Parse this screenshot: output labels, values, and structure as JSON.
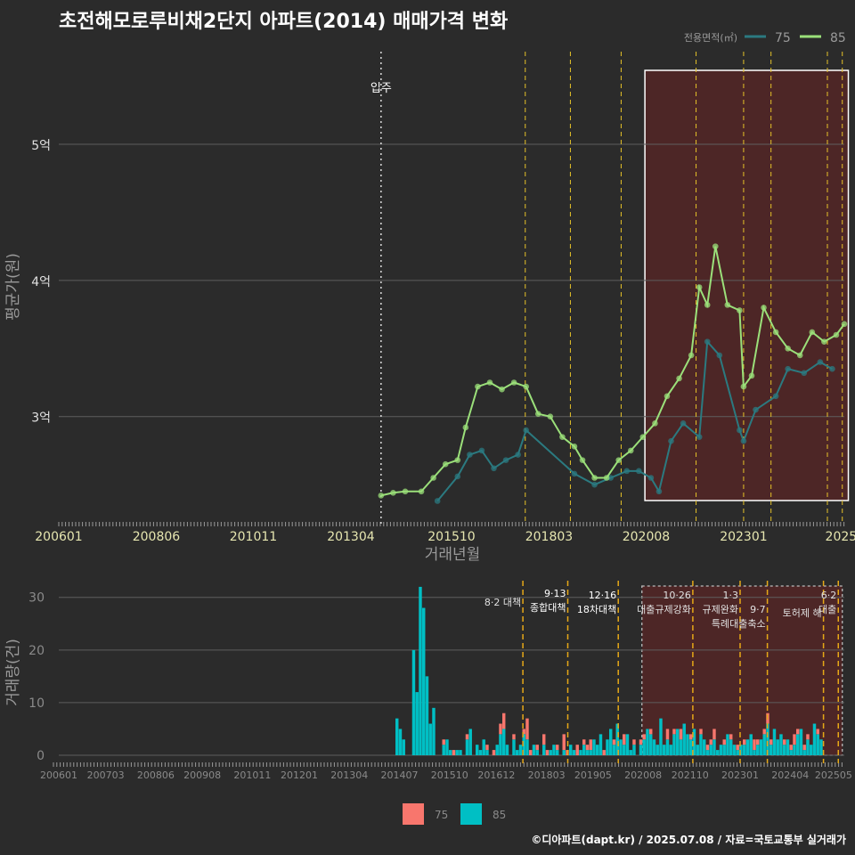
{
  "title": "초전해모로루비채2단지 아파트(2014) 매매가격 변화",
  "credit": "©디아파트(dapt.kr) / 2025.07.08 / 자료=국토교통부 실거래가",
  "colors": {
    "bg": "#2b2b2b",
    "s75_line": "#2b7a80",
    "s85_line": "#9be07a",
    "s75_bar": "#f8766d",
    "s85_bar": "#00bfc4",
    "policy": "#e6c229",
    "highlight": "#5a2626",
    "grid": "#5e5e5e"
  },
  "chart_data": [
    {
      "type": "line",
      "ylabel": "평균가(원)",
      "xlabel": "거래년월",
      "legend_title": "전용면적(㎡)",
      "legend_position": "top-right",
      "x_ticks": [
        "200601",
        "200806",
        "201011",
        "201304",
        "201510",
        "201803",
        "202008",
        "202301",
        "2025"
      ],
      "y_ticks": [
        "3억",
        "4억",
        "5억"
      ],
      "ylim": [
        2.2,
        5.7
      ],
      "annotation": "입주",
      "annotation_x": 2014.0,
      "policy_x": [
        2017.58,
        2018.7,
        2019.96,
        2021.82,
        2023.0,
        2023.68,
        2025.08,
        2025.45
      ],
      "highlight_range": [
        2020.55,
        2025.6
      ],
      "series": [
        {
          "name": "75",
          "points": [
            [
              2015.4,
              2.38
            ],
            [
              2015.9,
              2.56
            ],
            [
              2016.2,
              2.72
            ],
            [
              2016.5,
              2.75
            ],
            [
              2016.8,
              2.62
            ],
            [
              2017.1,
              2.68
            ],
            [
              2017.4,
              2.72
            ],
            [
              2017.6,
              2.9
            ],
            [
              2018.8,
              2.58
            ],
            [
              2019.3,
              2.5
            ],
            [
              2019.7,
              2.55
            ],
            [
              2020.1,
              2.6
            ],
            [
              2020.4,
              2.6
            ],
            [
              2020.7,
              2.55
            ],
            [
              2020.9,
              2.45
            ],
            [
              2021.2,
              2.82
            ],
            [
              2021.5,
              2.95
            ],
            [
              2021.9,
              2.85
            ],
            [
              2022.1,
              3.55
            ],
            [
              2022.4,
              3.45
            ],
            [
              2022.9,
              2.9
            ],
            [
              2023.0,
              2.82
            ],
            [
              2023.3,
              3.05
            ],
            [
              2023.8,
              3.15
            ],
            [
              2024.1,
              3.35
            ],
            [
              2024.5,
              3.32
            ],
            [
              2024.9,
              3.4
            ],
            [
              2025.2,
              3.35
            ]
          ]
        },
        {
          "name": "85",
          "points": [
            [
              2014.0,
              2.42
            ],
            [
              2014.3,
              2.44
            ],
            [
              2014.6,
              2.45
            ],
            [
              2015.0,
              2.45
            ],
            [
              2015.3,
              2.55
            ],
            [
              2015.6,
              2.65
            ],
            [
              2015.9,
              2.68
            ],
            [
              2016.1,
              2.92
            ],
            [
              2016.4,
              3.22
            ],
            [
              2016.7,
              3.25
            ],
            [
              2017.0,
              3.2
            ],
            [
              2017.3,
              3.25
            ],
            [
              2017.6,
              3.22
            ],
            [
              2017.9,
              3.02
            ],
            [
              2018.2,
              3.0
            ],
            [
              2018.5,
              2.85
            ],
            [
              2018.8,
              2.78
            ],
            [
              2019.0,
              2.68
            ],
            [
              2019.3,
              2.55
            ],
            [
              2019.6,
              2.55
            ],
            [
              2019.9,
              2.68
            ],
            [
              2020.2,
              2.75
            ],
            [
              2020.5,
              2.85
            ],
            [
              2020.8,
              2.95
            ],
            [
              2021.1,
              3.15
            ],
            [
              2021.4,
              3.28
            ],
            [
              2021.7,
              3.45
            ],
            [
              2021.9,
              3.95
            ],
            [
              2022.1,
              3.82
            ],
            [
              2022.3,
              4.25
            ],
            [
              2022.6,
              3.82
            ],
            [
              2022.9,
              3.78
            ],
            [
              2023.0,
              3.22
            ],
            [
              2023.2,
              3.3
            ],
            [
              2023.5,
              3.8
            ],
            [
              2023.8,
              3.62
            ],
            [
              2024.1,
              3.5
            ],
            [
              2024.4,
              3.45
            ],
            [
              2024.7,
              3.62
            ],
            [
              2025.0,
              3.55
            ],
            [
              2025.3,
              3.6
            ],
            [
              2025.5,
              3.68
            ]
          ]
        }
      ]
    },
    {
      "type": "bar",
      "ylabel": "거래량(건)",
      "x_ticks": [
        "200601",
        "200703",
        "200806",
        "200908",
        "201011",
        "201201",
        "201304",
        "201407",
        "201510",
        "201612",
        "201803",
        "201905",
        "202008",
        "202110",
        "202301",
        "202404",
        "202505"
      ],
      "y_ticks": [
        "0",
        "10",
        "20",
        "30"
      ],
      "ylim": [
        0,
        33
      ],
      "series": [
        {
          "name": "75",
          "values": [
            0,
            0,
            0,
            0,
            0,
            0,
            0,
            0,
            0,
            0,
            0,
            0,
            0,
            0,
            1,
            0,
            0,
            1,
            0,
            0,
            0,
            1,
            0,
            0,
            0,
            0,
            0,
            1,
            0,
            1,
            0,
            2,
            3,
            0,
            0,
            1,
            0,
            0,
            1,
            4,
            1,
            0,
            1,
            0,
            2,
            1,
            0,
            0,
            1,
            0,
            3,
            1,
            0,
            0,
            2,
            0,
            1,
            1,
            2,
            0,
            0,
            0,
            1,
            0,
            0,
            1,
            0,
            0,
            2,
            0,
            0,
            1,
            0,
            1,
            1,
            0,
            1,
            0,
            0,
            0,
            0,
            2,
            0,
            1,
            0,
            2,
            0,
            0,
            1,
            0,
            0,
            1,
            0,
            1,
            1,
            2,
            0,
            0,
            1,
            0,
            1,
            0,
            1,
            0,
            1,
            0,
            0,
            2,
            1,
            0,
            1,
            2,
            1,
            0,
            0,
            0,
            1,
            0,
            1,
            2,
            1,
            0,
            1,
            1,
            0,
            0,
            1,
            0
          ]
        },
        {
          "name": "85",
          "values": [
            7,
            5,
            3,
            0,
            0,
            20,
            12,
            32,
            28,
            15,
            6,
            9,
            0,
            0,
            2,
            3,
            1,
            0,
            1,
            1,
            0,
            3,
            5,
            0,
            2,
            1,
            3,
            1,
            0,
            0,
            2,
            4,
            5,
            2,
            0,
            3,
            1,
            2,
            4,
            3,
            0,
            2,
            1,
            0,
            2,
            0,
            1,
            2,
            1,
            0,
            1,
            0,
            2,
            1,
            0,
            1,
            2,
            1,
            1,
            3,
            2,
            4,
            0,
            3,
            5,
            2,
            6,
            3,
            2,
            4,
            1,
            2,
            0,
            2,
            3,
            5,
            4,
            3,
            2,
            7,
            2,
            3,
            2,
            4,
            5,
            3,
            6,
            4,
            3,
            5,
            2,
            4,
            3,
            1,
            2,
            3,
            1,
            2,
            2,
            4,
            3,
            2,
            1,
            2,
            2,
            3,
            4,
            1,
            2,
            3,
            4,
            6,
            2,
            5,
            3,
            4,
            2,
            3,
            1,
            2,
            4,
            5,
            1,
            3,
            2,
            6,
            4,
            3
          ]
        }
      ],
      "policies": [
        {
          "label": "8·2 대책",
          "x": 2017.58
        },
        {
          "label": "9·13\n종합대책",
          "x": 2018.7
        },
        {
          "label": "12·16\n18차대책",
          "x": 2019.96
        },
        {
          "label": "10·26\n대출규제강화",
          "x": 2021.82
        },
        {
          "label": "1·3\n규제완화",
          "x": 2023.0
        },
        {
          "label": "9·7\n특례대출축소",
          "x": 2023.68
        },
        {
          "label": "토허제 해",
          "x": 2025.08
        },
        {
          "label": "6·2\n대출",
          "x": 2025.45
        }
      ]
    }
  ],
  "legend": {
    "items": [
      "75",
      "85"
    ]
  }
}
